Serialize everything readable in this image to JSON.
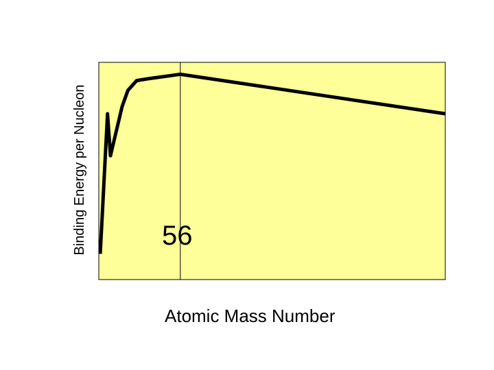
{
  "chart_data": {
    "type": "line",
    "title": "",
    "xlabel": "Atomic Mass Number",
    "ylabel": "Binding Energy per Nucleon",
    "annotation": "56",
    "marker_x": 56,
    "xlim": [
      0,
      238
    ],
    "ylim": [
      0,
      9.3
    ],
    "grid": false,
    "legend": "none",
    "background_color": "#ffff99",
    "line_color": "#000000",
    "series": [
      {
        "points": [
          [
            1,
            1.1
          ],
          [
            6,
            7.1
          ],
          [
            8,
            5.3
          ],
          [
            16,
            7.4
          ],
          [
            20,
            8.1
          ],
          [
            26,
            8.52
          ],
          [
            34,
            8.6
          ],
          [
            56,
            8.79
          ],
          [
            238,
            7.1
          ]
        ]
      }
    ]
  }
}
